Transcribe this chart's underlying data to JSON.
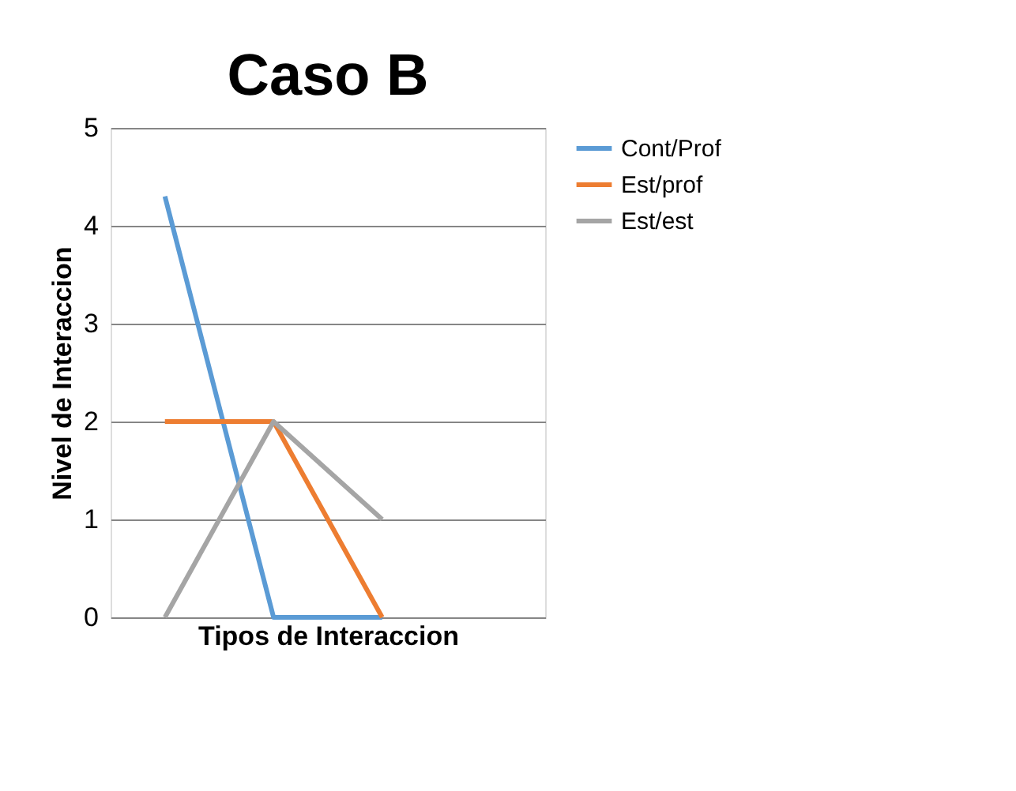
{
  "chart_data": {
    "type": "line",
    "title": "Caso B",
    "xlabel": "Tipos de Interaccion",
    "ylabel": "Nivel de Interaccion",
    "categories": [
      null,
      null,
      null,
      null
    ],
    "series": [
      {
        "name": "Cont/Prof",
        "color": "#5b9bd5",
        "values": [
          4.3,
          0,
          0,
          null
        ]
      },
      {
        "name": "Est/prof",
        "color": "#ed7d31",
        "values": [
          2,
          2,
          0,
          null
        ]
      },
      {
        "name": "Est/est",
        "color": "#a5a5a5",
        "values": [
          0,
          2,
          1,
          null
        ]
      }
    ],
    "ylim": [
      0,
      5
    ],
    "yticks": [
      0,
      1,
      2,
      3,
      4,
      5
    ],
    "grid": "y",
    "legend": "right",
    "tick_labels": "y",
    "marker": "none",
    "line_style": "solid"
  }
}
